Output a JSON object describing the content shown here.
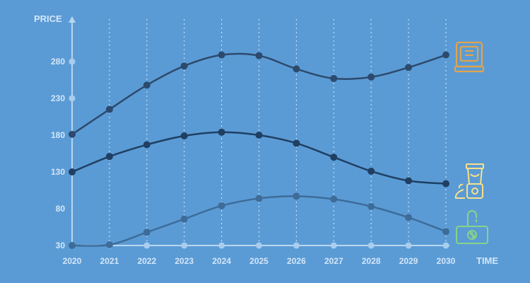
{
  "chart_data": {
    "type": "line",
    "xlabel": "TIME",
    "ylabel": "PRICE",
    "x": [
      2020,
      2021,
      2022,
      2023,
      2024,
      2025,
      2026,
      2027,
      2028,
      2029,
      2030
    ],
    "ylim": [
      30,
      310
    ],
    "yticks": [
      30,
      80,
      130,
      180,
      230,
      280
    ],
    "grid": "vertical dotted lines",
    "series": [
      {
        "icon": "bread-maker-icon",
        "color": "#2c4a6e",
        "values": [
          181,
          215,
          248,
          274,
          289,
          288,
          270,
          257,
          259,
          272,
          289
        ]
      },
      {
        "icon": "blender-icon",
        "color": "#1f3f63",
        "values": [
          130,
          151,
          167,
          179,
          184,
          180,
          169,
          150,
          131,
          118,
          114
        ]
      },
      {
        "icon": "kitchen-faucet-icon",
        "color": "#3d6c99",
        "values": [
          30,
          31,
          48,
          66,
          84,
          94,
          97,
          93,
          83,
          68,
          49
        ]
      }
    ]
  },
  "colors": {
    "background": "#5b9bd5",
    "axis": "#b9d6f0",
    "grid": "#d7e8f8",
    "label": "#d3e6f8",
    "icon_orange": "#e0a44a",
    "icon_yellow": "#f6e08a",
    "icon_green": "#86d38a"
  }
}
